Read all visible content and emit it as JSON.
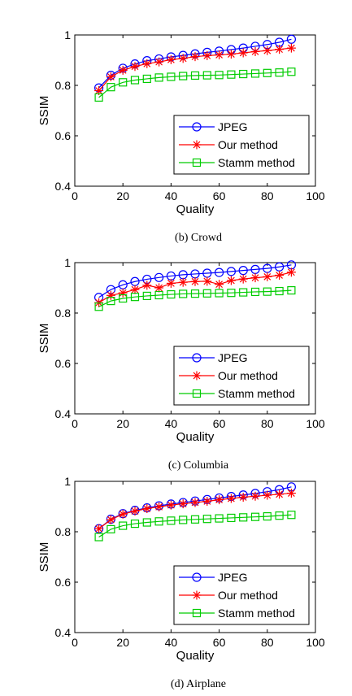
{
  "colors": {
    "jpeg": "#0000ff",
    "ours": "#ff0000",
    "stamm": "#00cc00",
    "axis": "#000000"
  },
  "chart_data": [
    {
      "type": "line",
      "caption": "(b) Crowd",
      "xlabel": "Quality",
      "ylabel": "SSIM",
      "xlim": [
        0,
        100
      ],
      "ylim": [
        0.4,
        1
      ],
      "xticks": [
        "0",
        "20",
        "40",
        "60",
        "80",
        "100"
      ],
      "yticks": [
        "0.4",
        "0.6",
        "0.8",
        "1"
      ],
      "legend_position": "bottom-right",
      "x": [
        10,
        15,
        20,
        25,
        30,
        35,
        40,
        45,
        50,
        55,
        60,
        65,
        70,
        75,
        80,
        85,
        90
      ],
      "series": [
        {
          "name": "JPEG",
          "marker": "circle",
          "color": "#0000ff",
          "values": [
            0.79,
            0.84,
            0.868,
            0.885,
            0.898,
            0.905,
            0.913,
            0.919,
            0.925,
            0.931,
            0.936,
            0.942,
            0.948,
            0.955,
            0.962,
            0.971,
            0.983
          ]
        },
        {
          "name": "Our method",
          "marker": "star",
          "color": "#ff0000",
          "values": [
            0.779,
            0.834,
            0.86,
            0.875,
            0.886,
            0.893,
            0.902,
            0.907,
            0.914,
            0.918,
            0.921,
            0.924,
            0.929,
            0.934,
            0.938,
            0.943,
            0.948
          ]
        },
        {
          "name": "Stamm method",
          "marker": "square",
          "color": "#00cc00",
          "values": [
            0.752,
            0.793,
            0.812,
            0.821,
            0.826,
            0.831,
            0.834,
            0.837,
            0.839,
            0.84,
            0.841,
            0.843,
            0.845,
            0.847,
            0.849,
            0.851,
            0.854
          ]
        }
      ]
    },
    {
      "type": "line",
      "caption": "(c) Columbia",
      "xlabel": "Quality",
      "ylabel": "SSIM",
      "xlim": [
        0,
        100
      ],
      "ylim": [
        0.4,
        1
      ],
      "xticks": [
        "0",
        "20",
        "40",
        "60",
        "80",
        "100"
      ],
      "yticks": [
        "0.4",
        "0.6",
        "0.8",
        "1"
      ],
      "legend_position": "bottom-right",
      "x": [
        10,
        15,
        20,
        25,
        30,
        35,
        40,
        45,
        50,
        55,
        60,
        65,
        70,
        75,
        80,
        85,
        90
      ],
      "series": [
        {
          "name": "JPEG",
          "marker": "circle",
          "color": "#0000ff",
          "values": [
            0.862,
            0.893,
            0.912,
            0.925,
            0.934,
            0.941,
            0.947,
            0.952,
            0.955,
            0.958,
            0.961,
            0.965,
            0.969,
            0.973,
            0.977,
            0.983,
            0.991
          ]
        },
        {
          "name": "Our method",
          "marker": "star",
          "color": "#ff0000",
          "values": [
            0.841,
            0.87,
            0.88,
            0.893,
            0.91,
            0.9,
            0.918,
            0.922,
            0.925,
            0.926,
            0.914,
            0.929,
            0.935,
            0.94,
            0.944,
            0.95,
            0.962
          ]
        },
        {
          "name": "Stamm method",
          "marker": "square",
          "color": "#00cc00",
          "values": [
            0.825,
            0.848,
            0.858,
            0.864,
            0.868,
            0.871,
            0.874,
            0.876,
            0.877,
            0.878,
            0.879,
            0.88,
            0.882,
            0.884,
            0.885,
            0.887,
            0.89
          ]
        }
      ]
    },
    {
      "type": "line",
      "caption": "(d) Airplane",
      "xlabel": "Quality",
      "ylabel": "SSIM",
      "xlim": [
        0,
        100
      ],
      "ylim": [
        0.4,
        1
      ],
      "xticks": [
        "0",
        "20",
        "40",
        "60",
        "80",
        "100"
      ],
      "yticks": [
        "0.4",
        "0.6",
        "0.8",
        "1"
      ],
      "legend_position": "bottom-right",
      "x": [
        10,
        15,
        20,
        25,
        30,
        35,
        40,
        45,
        50,
        55,
        60,
        65,
        70,
        75,
        80,
        85,
        90
      ],
      "series": [
        {
          "name": "JPEG",
          "marker": "circle",
          "color": "#0000ff",
          "values": [
            0.812,
            0.85,
            0.872,
            0.885,
            0.895,
            0.903,
            0.91,
            0.916,
            0.922,
            0.928,
            0.934,
            0.94,
            0.946,
            0.952,
            0.959,
            0.967,
            0.978
          ]
        },
        {
          "name": "Our method",
          "marker": "star",
          "color": "#ff0000",
          "values": [
            0.812,
            0.848,
            0.87,
            0.882,
            0.892,
            0.899,
            0.906,
            0.911,
            0.916,
            0.921,
            0.927,
            0.932,
            0.937,
            0.941,
            0.945,
            0.949,
            0.953
          ]
        },
        {
          "name": "Stamm method",
          "marker": "square",
          "color": "#00cc00",
          "values": [
            0.779,
            0.81,
            0.824,
            0.832,
            0.837,
            0.841,
            0.844,
            0.847,
            0.849,
            0.851,
            0.853,
            0.855,
            0.857,
            0.859,
            0.861,
            0.864,
            0.867
          ]
        }
      ]
    }
  ]
}
